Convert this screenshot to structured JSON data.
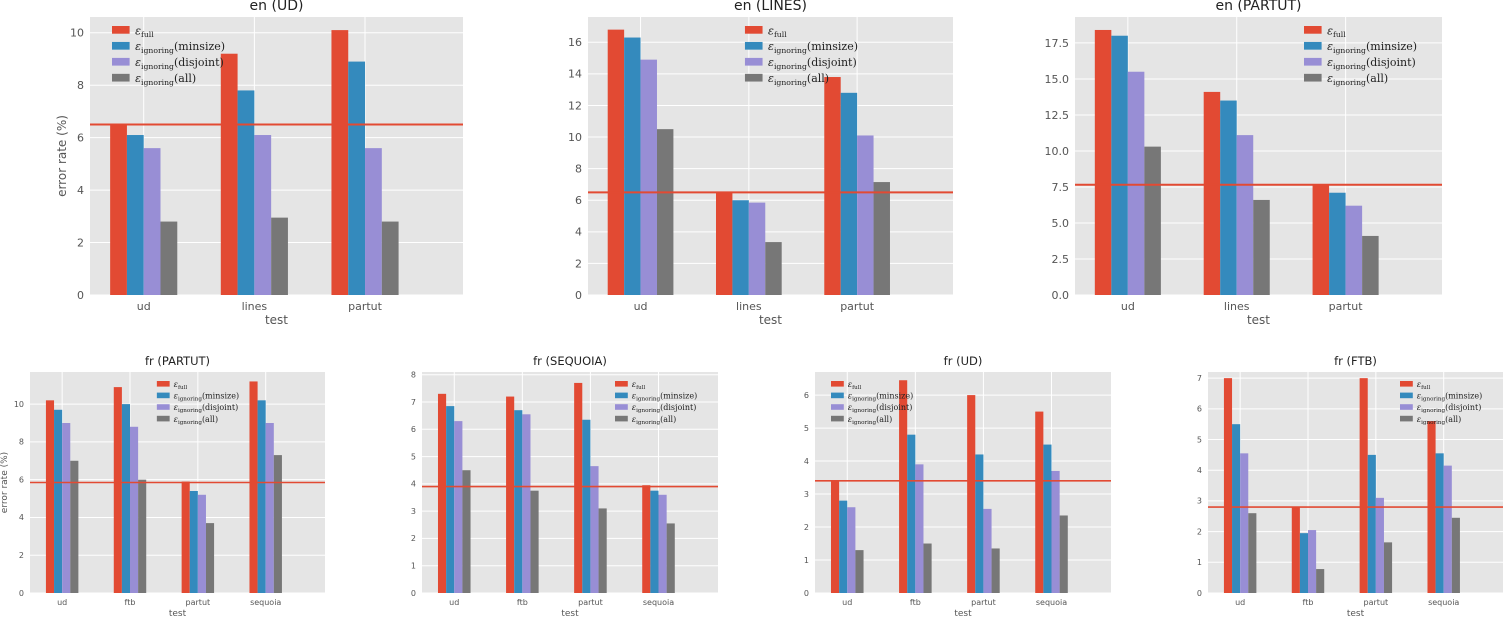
{
  "colors": {
    "series": [
      "#e24a33",
      "#348abd",
      "#988ed5",
      "#777777"
    ],
    "hline": "#e24a33"
  },
  "legend_labels": [
    {
      "main": "ε",
      "sub": "full",
      "tail": ""
    },
    {
      "main": "ε",
      "sub": "ignoring",
      "tail": "(minsize)"
    },
    {
      "main": "ε",
      "sub": "ignoring",
      "tail": "(disjoint)"
    },
    {
      "main": "ε",
      "sub": "ignoring",
      "tail": "(all)"
    }
  ],
  "chart_data": [
    {
      "type": "bar",
      "title": "en (UD)",
      "xlabel": "test",
      "ylabel": "error rate (%)",
      "categories": [
        "ud",
        "lines",
        "partut"
      ],
      "ylim": [
        0,
        10.6
      ],
      "yticks": [
        "0",
        "2",
        "4",
        "6",
        "8",
        "10"
      ],
      "ytick_values": [
        0,
        2,
        4,
        6,
        8,
        10
      ],
      "hline": 6.5,
      "legend_position": "top-left",
      "series": [
        {
          "values": [
            6.5,
            9.2,
            10.1
          ]
        },
        {
          "values": [
            6.1,
            7.8,
            8.9
          ]
        },
        {
          "values": [
            5.6,
            6.1,
            5.6
          ]
        },
        {
          "values": [
            2.8,
            2.95,
            2.8
          ]
        }
      ]
    },
    {
      "type": "bar",
      "title": "en (LINES)",
      "xlabel": "test",
      "ylabel": "",
      "categories": [
        "ud",
        "lines",
        "partut"
      ],
      "ylim": [
        0,
        17.6
      ],
      "yticks": [
        "0",
        "2",
        "4",
        "6",
        "8",
        "10",
        "12",
        "14",
        "16"
      ],
      "ytick_values": [
        0,
        2,
        4,
        6,
        8,
        10,
        12,
        14,
        16
      ],
      "hline": 6.5,
      "legend_position": "top-center",
      "series": [
        {
          "values": [
            16.8,
            6.5,
            13.8
          ]
        },
        {
          "values": [
            16.3,
            6.0,
            12.8
          ]
        },
        {
          "values": [
            14.9,
            5.85,
            10.1
          ]
        },
        {
          "values": [
            10.5,
            3.35,
            7.15
          ]
        }
      ]
    },
    {
      "type": "bar",
      "title": "en (PARTUT)",
      "xlabel": "test",
      "ylabel": "",
      "categories": [
        "ud",
        "lines",
        "partut"
      ],
      "ylim": [
        0,
        19.3
      ],
      "yticks": [
        "0.0",
        "2.5",
        "5.0",
        "7.5",
        "10.0",
        "12.5",
        "15.0",
        "17.5"
      ],
      "ytick_values": [
        0,
        2.5,
        5,
        7.5,
        10,
        12.5,
        15,
        17.5
      ],
      "hline": 7.65,
      "legend_position": "top-right",
      "series": [
        {
          "values": [
            18.4,
            14.1,
            7.7
          ]
        },
        {
          "values": [
            18.0,
            13.5,
            7.1
          ]
        },
        {
          "values": [
            15.5,
            11.1,
            6.2
          ]
        },
        {
          "values": [
            10.3,
            6.6,
            4.1
          ]
        }
      ]
    },
    {
      "type": "bar",
      "title": "fr (PARTUT)",
      "xlabel": "test",
      "ylabel": "error rate (%)",
      "categories": [
        "ud",
        "ftb",
        "partut",
        "sequoia"
      ],
      "ylim": [
        0,
        11.7
      ],
      "yticks": [
        "0",
        "2",
        "4",
        "6",
        "8",
        "10"
      ],
      "ytick_values": [
        0,
        2,
        4,
        6,
        8,
        10
      ],
      "hline": 5.85,
      "legend_position": "top-center",
      "series": [
        {
          "values": [
            10.2,
            10.9,
            5.9,
            11.2
          ]
        },
        {
          "values": [
            9.7,
            10.0,
            5.4,
            10.2
          ]
        },
        {
          "values": [
            9.0,
            8.8,
            5.2,
            9.0
          ]
        },
        {
          "values": [
            7.0,
            6.0,
            3.7,
            7.3
          ]
        }
      ]
    },
    {
      "type": "bar",
      "title": "fr (SEQUOIA)",
      "xlabel": "test",
      "ylabel": "",
      "categories": [
        "ud",
        "ftb",
        "partut",
        "sequoia"
      ],
      "ylim": [
        0,
        8.1
      ],
      "yticks": [
        "0",
        "1",
        "2",
        "3",
        "4",
        "5",
        "6",
        "7",
        "8"
      ],
      "ytick_values": [
        0,
        1,
        2,
        3,
        4,
        5,
        6,
        7,
        8
      ],
      "hline": 3.9,
      "legend_position": "top-right",
      "series": [
        {
          "values": [
            7.3,
            7.2,
            7.7,
            3.95
          ]
        },
        {
          "values": [
            6.85,
            6.7,
            6.35,
            3.75
          ]
        },
        {
          "values": [
            6.3,
            6.55,
            4.65,
            3.6
          ]
        },
        {
          "values": [
            4.5,
            3.75,
            3.1,
            2.55
          ]
        }
      ]
    },
    {
      "type": "bar",
      "title": "fr (UD)",
      "xlabel": "test",
      "ylabel": "",
      "categories": [
        "ud",
        "ftb",
        "partut",
        "sequoia"
      ],
      "ylim": [
        0,
        6.7
      ],
      "yticks": [
        "0",
        "1",
        "2",
        "3",
        "4",
        "5",
        "6"
      ],
      "ytick_values": [
        0,
        1,
        2,
        3,
        4,
        5,
        6
      ],
      "hline": 3.4,
      "legend_position": "top-left",
      "series": [
        {
          "values": [
            3.4,
            6.45,
            6.0,
            5.5
          ]
        },
        {
          "values": [
            2.8,
            4.8,
            4.2,
            4.5
          ]
        },
        {
          "values": [
            2.6,
            3.9,
            2.55,
            3.7
          ]
        },
        {
          "values": [
            1.3,
            1.5,
            1.35,
            2.35
          ]
        }
      ]
    },
    {
      "type": "bar",
      "title": "fr (FTB)",
      "xlabel": "test",
      "ylabel": "",
      "categories": [
        "ud",
        "ftb",
        "partut",
        "sequoia"
      ],
      "ylim": [
        0,
        7.2
      ],
      "yticks": [
        "0",
        "1",
        "2",
        "3",
        "4",
        "5",
        "6",
        "7"
      ],
      "ytick_values": [
        0,
        1,
        2,
        3,
        4,
        5,
        6,
        7
      ],
      "hline": 2.8,
      "legend_position": "top-right",
      "series": [
        {
          "values": [
            7.0,
            2.8,
            7.0,
            5.6
          ]
        },
        {
          "values": [
            5.5,
            1.95,
            4.5,
            4.55
          ]
        },
        {
          "values": [
            4.55,
            2.05,
            3.1,
            4.15
          ]
        },
        {
          "values": [
            2.6,
            0.78,
            1.65,
            2.45
          ]
        }
      ]
    }
  ]
}
